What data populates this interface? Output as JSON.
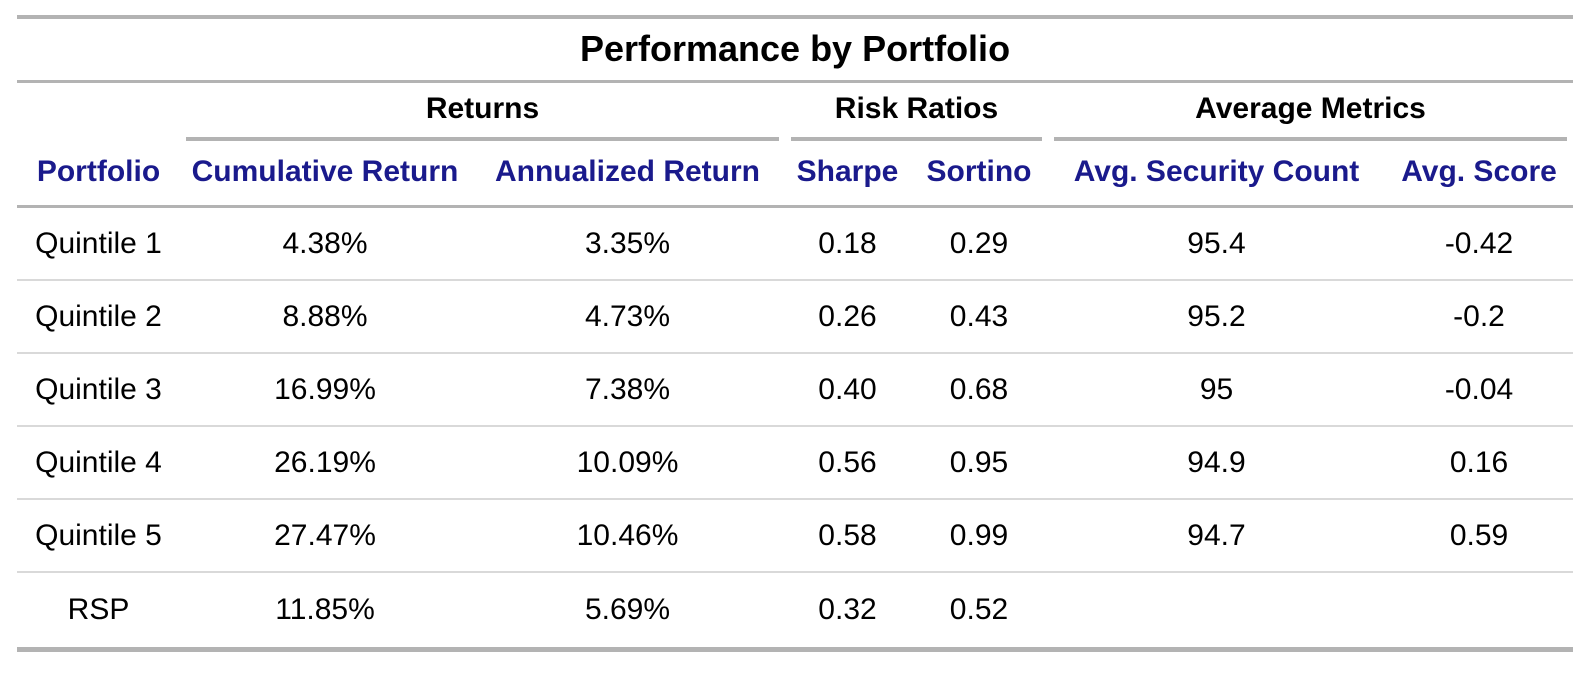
{
  "colors": {
    "header_text": "#1a1a8c",
    "body_text": "#000000",
    "major_rule": "#b3b3b3",
    "row_rule": "#d9d9d9",
    "background": "#ffffff"
  },
  "chart_data": {
    "type": "table",
    "title": "Performance by Portfolio",
    "column_groups": [
      {
        "label": "Returns",
        "columns": [
          "Cumulative Return",
          "Annualized Return"
        ]
      },
      {
        "label": "Risk Ratios",
        "columns": [
          "Sharpe",
          "Sortino"
        ]
      },
      {
        "label": "Average Metrics",
        "columns": [
          "Avg. Security Count",
          "Avg. Score"
        ]
      }
    ],
    "columns": [
      "Portfolio",
      "Cumulative Return",
      "Annualized Return",
      "Sharpe",
      "Sortino",
      "Avg. Security Count",
      "Avg. Score"
    ],
    "rows": [
      [
        "Quintile 1",
        "4.38%",
        "3.35%",
        "0.18",
        "0.29",
        "95.4",
        "-0.42"
      ],
      [
        "Quintile 2",
        "8.88%",
        "4.73%",
        "0.26",
        "0.43",
        "95.2",
        "-0.2"
      ],
      [
        "Quintile 3",
        "16.99%",
        "7.38%",
        "0.40",
        "0.68",
        "95",
        "-0.04"
      ],
      [
        "Quintile 4",
        "26.19%",
        "10.09%",
        "0.56",
        "0.95",
        "94.9",
        "0.16"
      ],
      [
        "Quintile 5",
        "27.47%",
        "10.46%",
        "0.58",
        "0.99",
        "94.7",
        "0.59"
      ],
      [
        "RSP",
        "11.85%",
        "5.69%",
        "0.32",
        "0.52",
        "",
        ""
      ]
    ]
  }
}
